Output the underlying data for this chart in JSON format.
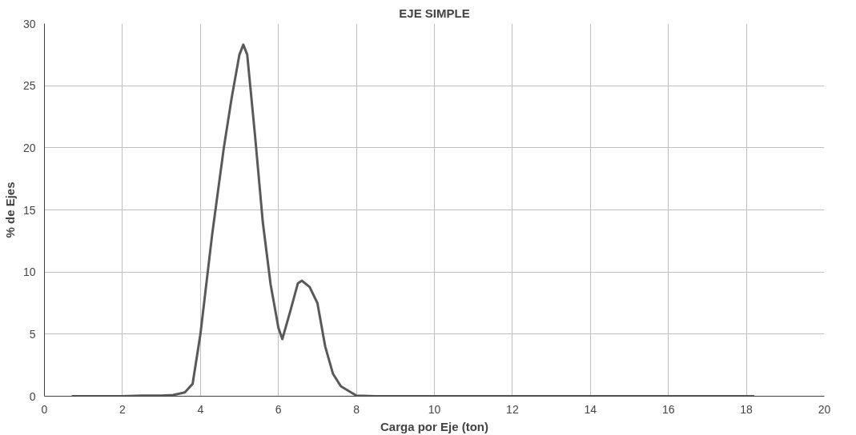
{
  "chart_data": {
    "type": "line",
    "title": "EJE SIMPLE",
    "xlabel": "Carga por Eje (ton)",
    "ylabel": "% de Ejes",
    "x": [
      0.7,
      1,
      2,
      2.5,
      3,
      3.3,
      3.6,
      3.8,
      4,
      4.3,
      4.6,
      4.8,
      5,
      5.1,
      5.2,
      5.4,
      5.6,
      5.8,
      6,
      6.1,
      6.3,
      6.5,
      6.6,
      6.8,
      7,
      7.2,
      7.4,
      7.6,
      8,
      8.5,
      9,
      10,
      12,
      14,
      16,
      18.2
    ],
    "series": [
      {
        "color": "#595959",
        "values": [
          0,
          0,
          0,
          0.05,
          0.05,
          0.1,
          0.3,
          1,
          5,
          13,
          20,
          24,
          27.5,
          28.3,
          27.5,
          21,
          14,
          9,
          5.5,
          4.6,
          6.8,
          9.1,
          9.3,
          8.8,
          7.5,
          4,
          1.8,
          0.8,
          0.05,
          0,
          0,
          0,
          0,
          0,
          0,
          0
        ]
      }
    ],
    "xlim": [
      0,
      20
    ],
    "xticks": [
      0,
      2,
      4,
      6,
      8,
      10,
      12,
      14,
      16,
      18,
      20
    ],
    "ylim": [
      0,
      30
    ],
    "yticks": [
      0,
      5,
      10,
      15,
      20,
      25,
      30
    ],
    "grid": true,
    "marker": "none",
    "line_style": "solid"
  }
}
